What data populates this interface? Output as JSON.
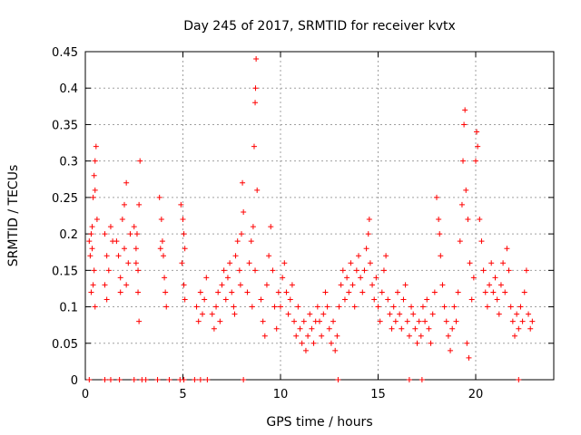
{
  "chart_data": {
    "type": "scatter",
    "title": "Day 245 of 2017, SRMTID for receiver kvtx",
    "xlabel": "GPS time / hours",
    "ylabel": "SRMTID / TECUs",
    "xlim": [
      0,
      24.0
    ],
    "ylim": [
      0,
      0.45
    ],
    "xticks": [
      0,
      5,
      10,
      15,
      20
    ],
    "xtick_labels": [
      "0",
      "5",
      "10",
      "15",
      "20"
    ],
    "yticks": [
      0,
      0.05,
      0.1,
      0.15,
      0.2,
      0.25,
      0.3,
      0.35,
      0.4,
      0.45
    ],
    "ytick_labels": [
      "0",
      "0.05",
      "0.1",
      "0.15",
      "0.2",
      "0.25",
      "0.3",
      "0.35",
      "0.4",
      "0.45"
    ],
    "grid": true,
    "marker": "+",
    "color": "#ff0000",
    "series": [
      {
        "name": "SRMTID",
        "points": [
          [
            0.2,
            0.19
          ],
          [
            0.25,
            0.17
          ],
          [
            0.3,
            0.2
          ],
          [
            0.35,
            0.18
          ],
          [
            0.4,
            0.25
          ],
          [
            0.45,
            0.28
          ],
          [
            0.5,
            0.3
          ],
          [
            0.55,
            0.32
          ],
          [
            0.3,
            0.12
          ],
          [
            0.4,
            0.13
          ],
          [
            0.5,
            0.1
          ],
          [
            0.6,
            0.22
          ],
          [
            0.45,
            0.15
          ],
          [
            0.35,
            0.21
          ],
          [
            0.5,
            0.26
          ],
          [
            1.0,
            0.2
          ],
          [
            1.1,
            0.17
          ],
          [
            1.2,
            0.15
          ],
          [
            1.0,
            0.13
          ],
          [
            1.3,
            0.21
          ],
          [
            1.1,
            0.11
          ],
          [
            1.4,
            0.19
          ],
          [
            1.6,
            0.19
          ],
          [
            1.7,
            0.17
          ],
          [
            1.8,
            0.14
          ],
          [
            1.9,
            0.22
          ],
          [
            2.0,
            0.24
          ],
          [
            2.1,
            0.27
          ],
          [
            2.0,
            0.18
          ],
          [
            1.8,
            0.12
          ],
          [
            2.2,
            0.16
          ],
          [
            2.3,
            0.2
          ],
          [
            2.1,
            0.13
          ],
          [
            2.5,
            0.21
          ],
          [
            2.6,
            0.18
          ],
          [
            2.7,
            0.15
          ],
          [
            2.75,
            0.24
          ],
          [
            2.8,
            0.3
          ],
          [
            2.65,
            0.2
          ],
          [
            2.7,
            0.12
          ],
          [
            2.75,
            0.08
          ],
          [
            2.6,
            0.16
          ],
          [
            3.8,
            0.25
          ],
          [
            3.9,
            0.22
          ],
          [
            3.95,
            0.19
          ],
          [
            4.0,
            0.17
          ],
          [
            4.05,
            0.14
          ],
          [
            4.1,
            0.12
          ],
          [
            4.15,
            0.1
          ],
          [
            3.85,
            0.18
          ],
          [
            4.9,
            0.24
          ],
          [
            5.0,
            0.22
          ],
          [
            5.05,
            0.2
          ],
          [
            5.1,
            0.18
          ],
          [
            4.95,
            0.16
          ],
          [
            5.05,
            0.13
          ],
          [
            5.1,
            0.11
          ],
          [
            5.7,
            0.1
          ],
          [
            5.8,
            0.08
          ],
          [
            5.9,
            0.12
          ],
          [
            6.0,
            0.09
          ],
          [
            6.1,
            0.11
          ],
          [
            6.2,
            0.14
          ],
          [
            6.5,
            0.09
          ],
          [
            6.6,
            0.07
          ],
          [
            6.7,
            0.1
          ],
          [
            6.8,
            0.12
          ],
          [
            6.9,
            0.08
          ],
          [
            7.0,
            0.13
          ],
          [
            7.1,
            0.15
          ],
          [
            7.2,
            0.11
          ],
          [
            7.3,
            0.14
          ],
          [
            7.4,
            0.16
          ],
          [
            7.5,
            0.12
          ],
          [
            7.6,
            0.1
          ],
          [
            7.7,
            0.17
          ],
          [
            7.8,
            0.19
          ],
          [
            7.9,
            0.15
          ],
          [
            8.0,
            0.2
          ],
          [
            8.1,
            0.23
          ],
          [
            8.05,
            0.27
          ],
          [
            7.95,
            0.13
          ],
          [
            7.65,
            0.09
          ],
          [
            8.3,
            0.12
          ],
          [
            8.4,
            0.16
          ],
          [
            8.5,
            0.19
          ],
          [
            8.6,
            0.21
          ],
          [
            8.65,
            0.32
          ],
          [
            8.7,
            0.38
          ],
          [
            8.72,
            0.4
          ],
          [
            8.75,
            0.44
          ],
          [
            8.8,
            0.26
          ],
          [
            8.7,
            0.15
          ],
          [
            8.55,
            0.1
          ],
          [
            9.0,
            0.11
          ],
          [
            9.1,
            0.08
          ],
          [
            9.2,
            0.06
          ],
          [
            9.3,
            0.13
          ],
          [
            9.4,
            0.17
          ],
          [
            9.5,
            0.21
          ],
          [
            9.6,
            0.15
          ],
          [
            9.7,
            0.1
          ],
          [
            9.8,
            0.07
          ],
          [
            9.9,
            0.12
          ],
          [
            10.0,
            0.1
          ],
          [
            10.1,
            0.14
          ],
          [
            10.2,
            0.16
          ],
          [
            10.3,
            0.12
          ],
          [
            10.4,
            0.09
          ],
          [
            10.5,
            0.11
          ],
          [
            10.6,
            0.13
          ],
          [
            10.7,
            0.08
          ],
          [
            10.8,
            0.06
          ],
          [
            10.9,
            0.1
          ],
          [
            11.0,
            0.07
          ],
          [
            11.1,
            0.05
          ],
          [
            11.2,
            0.08
          ],
          [
            11.3,
            0.04
          ],
          [
            11.4,
            0.06
          ],
          [
            11.5,
            0.09
          ],
          [
            11.6,
            0.07
          ],
          [
            11.7,
            0.05
          ],
          [
            11.8,
            0.08
          ],
          [
            11.9,
            0.1
          ],
          [
            12.0,
            0.08
          ],
          [
            12.1,
            0.06
          ],
          [
            12.2,
            0.09
          ],
          [
            12.3,
            0.12
          ],
          [
            12.4,
            0.1
          ],
          [
            12.5,
            0.07
          ],
          [
            12.6,
            0.05
          ],
          [
            12.7,
            0.08
          ],
          [
            12.8,
            0.04
          ],
          [
            12.9,
            0.06
          ],
          [
            13.0,
            0.1
          ],
          [
            13.1,
            0.13
          ],
          [
            13.2,
            0.15
          ],
          [
            13.3,
            0.11
          ],
          [
            13.4,
            0.14
          ],
          [
            13.5,
            0.12
          ],
          [
            13.6,
            0.16
          ],
          [
            13.7,
            0.13
          ],
          [
            13.8,
            0.1
          ],
          [
            13.9,
            0.15
          ],
          [
            14.0,
            0.17
          ],
          [
            14.1,
            0.14
          ],
          [
            14.2,
            0.12
          ],
          [
            14.3,
            0.15
          ],
          [
            14.4,
            0.18
          ],
          [
            14.5,
            0.2
          ],
          [
            14.55,
            0.22
          ],
          [
            14.6,
            0.16
          ],
          [
            14.7,
            0.13
          ],
          [
            14.8,
            0.11
          ],
          [
            14.9,
            0.14
          ],
          [
            15.0,
            0.1
          ],
          [
            15.1,
            0.08
          ],
          [
            15.2,
            0.12
          ],
          [
            15.3,
            0.15
          ],
          [
            15.4,
            0.17
          ],
          [
            15.5,
            0.11
          ],
          [
            15.6,
            0.09
          ],
          [
            15.7,
            0.07
          ],
          [
            15.8,
            0.1
          ],
          [
            15.9,
            0.08
          ],
          [
            16.0,
            0.12
          ],
          [
            16.1,
            0.09
          ],
          [
            16.2,
            0.07
          ],
          [
            16.3,
            0.11
          ],
          [
            16.4,
            0.13
          ],
          [
            16.5,
            0.08
          ],
          [
            16.6,
            0.06
          ],
          [
            16.7,
            0.1
          ],
          [
            16.8,
            0.09
          ],
          [
            16.9,
            0.07
          ],
          [
            17.0,
            0.05
          ],
          [
            17.1,
            0.08
          ],
          [
            17.2,
            0.06
          ],
          [
            17.3,
            0.1
          ],
          [
            17.4,
            0.08
          ],
          [
            17.5,
            0.11
          ],
          [
            17.6,
            0.07
          ],
          [
            17.7,
            0.05
          ],
          [
            17.8,
            0.09
          ],
          [
            17.9,
            0.12
          ],
          [
            18.0,
            0.25
          ],
          [
            18.1,
            0.22
          ],
          [
            18.15,
            0.2
          ],
          [
            18.2,
            0.17
          ],
          [
            18.3,
            0.13
          ],
          [
            18.4,
            0.1
          ],
          [
            18.5,
            0.08
          ],
          [
            18.6,
            0.06
          ],
          [
            18.7,
            0.04
          ],
          [
            18.8,
            0.07
          ],
          [
            18.9,
            0.1
          ],
          [
            19.0,
            0.08
          ],
          [
            19.1,
            0.12
          ],
          [
            19.2,
            0.19
          ],
          [
            19.3,
            0.24
          ],
          [
            19.35,
            0.3
          ],
          [
            19.4,
            0.35
          ],
          [
            19.45,
            0.37
          ],
          [
            19.5,
            0.26
          ],
          [
            19.6,
            0.22
          ],
          [
            19.7,
            0.16
          ],
          [
            19.55,
            0.05
          ],
          [
            19.65,
            0.03
          ],
          [
            19.8,
            0.11
          ],
          [
            19.9,
            0.14
          ],
          [
            20.0,
            0.3
          ],
          [
            20.05,
            0.34
          ],
          [
            20.1,
            0.32
          ],
          [
            20.2,
            0.22
          ],
          [
            20.3,
            0.19
          ],
          [
            20.4,
            0.15
          ],
          [
            20.5,
            0.12
          ],
          [
            20.6,
            0.1
          ],
          [
            20.7,
            0.13
          ],
          [
            20.8,
            0.16
          ],
          [
            20.9,
            0.12
          ],
          [
            21.0,
            0.14
          ],
          [
            21.1,
            0.11
          ],
          [
            21.2,
            0.09
          ],
          [
            21.3,
            0.13
          ],
          [
            21.4,
            0.16
          ],
          [
            21.5,
            0.12
          ],
          [
            21.6,
            0.18
          ],
          [
            21.7,
            0.15
          ],
          [
            21.8,
            0.1
          ],
          [
            21.9,
            0.08
          ],
          [
            22.0,
            0.06
          ],
          [
            22.1,
            0.09
          ],
          [
            22.2,
            0.07
          ],
          [
            22.3,
            0.1
          ],
          [
            22.4,
            0.08
          ],
          [
            22.5,
            0.12
          ],
          [
            22.6,
            0.15
          ],
          [
            22.7,
            0.09
          ],
          [
            22.8,
            0.07
          ],
          [
            22.9,
            0.08
          ],
          [
            0.2,
            0.0
          ],
          [
            1.0,
            0.0
          ],
          [
            1.3,
            0.0
          ],
          [
            1.75,
            0.0
          ],
          [
            2.5,
            0.0
          ],
          [
            2.9,
            0.0
          ],
          [
            3.1,
            0.0
          ],
          [
            3.7,
            0.0
          ],
          [
            4.3,
            0.0
          ],
          [
            4.85,
            0.0
          ],
          [
            5.05,
            0.0
          ],
          [
            5.6,
            0.0
          ],
          [
            5.9,
            0.0
          ],
          [
            6.25,
            0.0
          ],
          [
            8.1,
            0.0
          ],
          [
            12.95,
            0.0
          ],
          [
            16.6,
            0.0
          ],
          [
            17.25,
            0.0
          ],
          [
            22.2,
            0.0
          ]
        ]
      }
    ]
  }
}
